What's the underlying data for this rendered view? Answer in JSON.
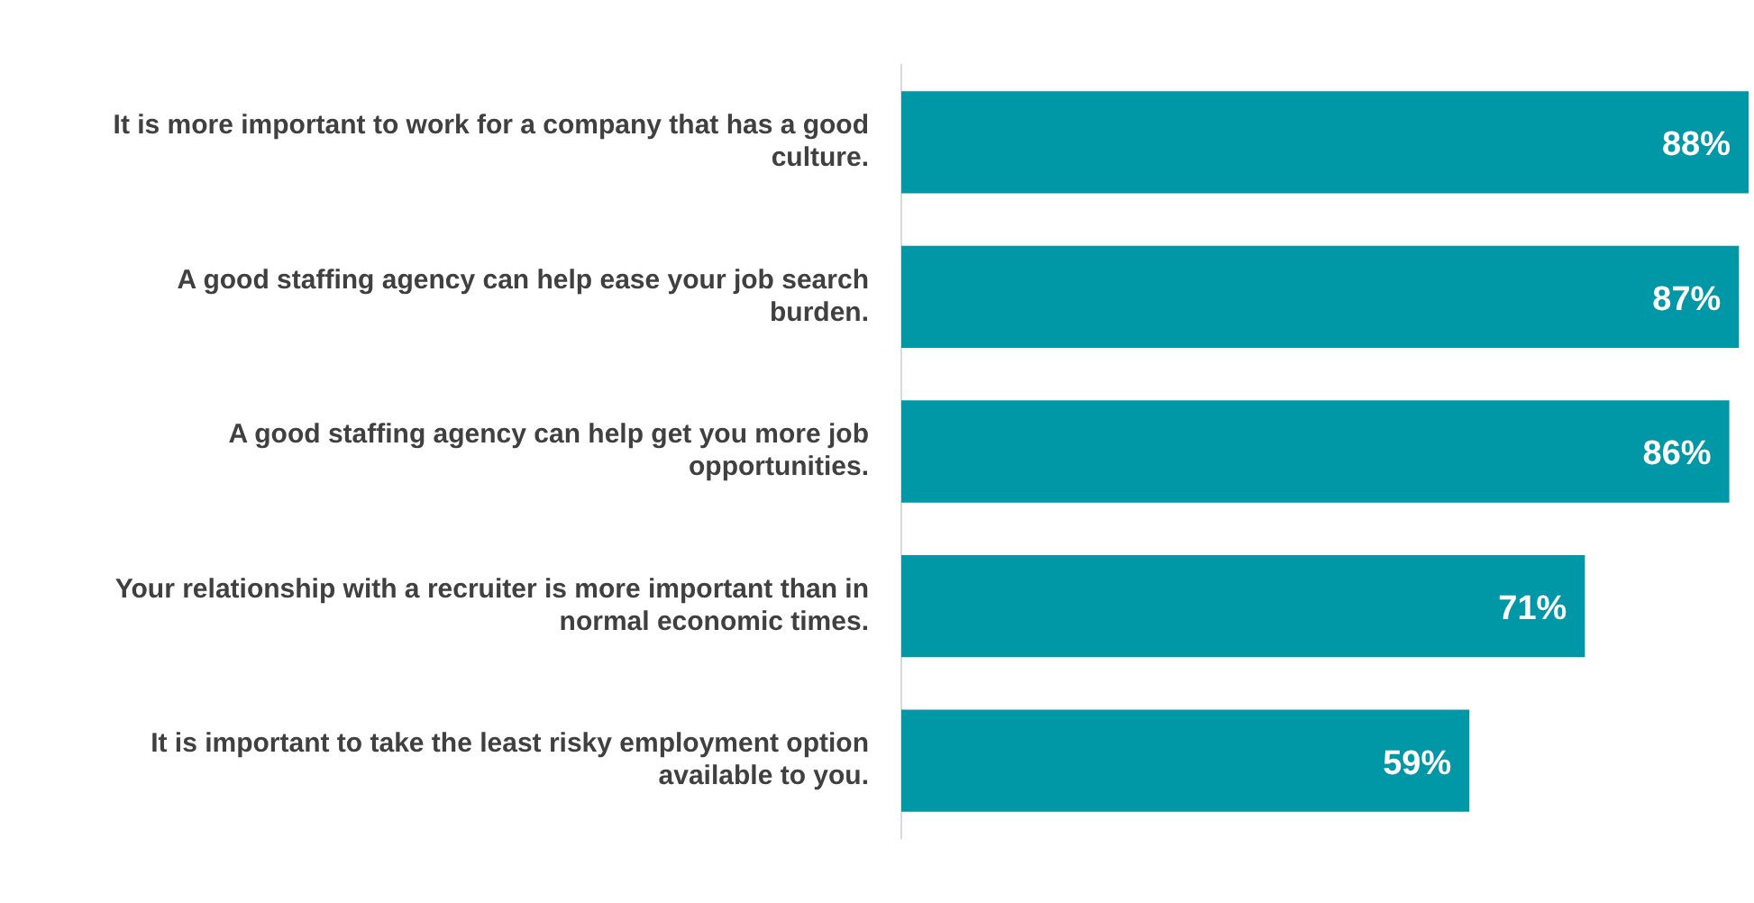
{
  "chart_data": {
    "type": "bar",
    "orientation": "horizontal",
    "categories": [
      "It is more important to work for a company that has a good culture.",
      "A good staffing agency can help ease your job search burden.",
      "A good staffing agency can help get you more job opportunities.",
      "Your relationship with a recruiter is more important than in normal economic times.",
      "It is important to take the least risky employment option available to you."
    ],
    "values": [
      88,
      87,
      86,
      71,
      59
    ],
    "value_labels": [
      "88%",
      "87%",
      "86%",
      "71%",
      "59%"
    ],
    "color": "#0097a7",
    "xlim": [
      0,
      88
    ],
    "tick_labels": "y"
  }
}
